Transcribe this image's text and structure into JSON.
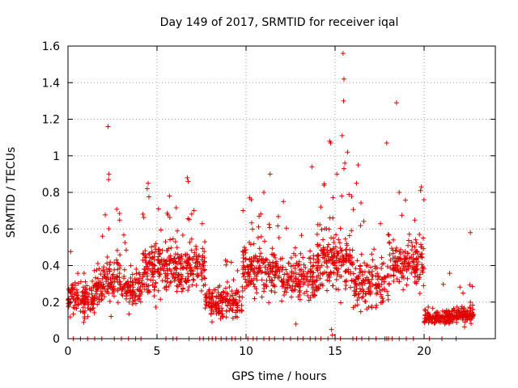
{
  "chart_data": {
    "type": "scatter",
    "title": "Day 149 of 2017, SRMTID for receiver iqal",
    "xlabel": "GPS time / hours",
    "ylabel": "SRMTID / TECUs",
    "xlim": [
      0,
      24
    ],
    "ylim": [
      0,
      1.6
    ],
    "xticks": [
      0,
      5,
      10,
      15,
      20
    ],
    "yticks": [
      0,
      0.2,
      0.4,
      0.6,
      0.8,
      1,
      1.2,
      1.4,
      1.6
    ],
    "xtick_labels": [
      "0",
      "5",
      "10",
      "15",
      "20"
    ],
    "ytick_labels": [
      "0",
      "0.2",
      "0.4",
      "0.6",
      "0.8",
      "1",
      "1.2",
      "1.4",
      "1.6"
    ],
    "grid": true,
    "marker": "+",
    "color": "#e00000",
    "outliers": [
      {
        "x": 2.25,
        "y": 1.16
      },
      {
        "x": 2.3,
        "y": 0.9
      },
      {
        "x": 2.28,
        "y": 0.87
      },
      {
        "x": 4.5,
        "y": 0.85
      },
      {
        "x": 4.45,
        "y": 0.82
      },
      {
        "x": 6.7,
        "y": 0.88
      },
      {
        "x": 6.75,
        "y": 0.86
      },
      {
        "x": 11.35,
        "y": 0.9
      },
      {
        "x": 13.7,
        "y": 0.94
      },
      {
        "x": 14.7,
        "y": 1.08
      },
      {
        "x": 14.75,
        "y": 1.07
      },
      {
        "x": 15.45,
        "y": 1.56
      },
      {
        "x": 15.5,
        "y": 1.42
      },
      {
        "x": 15.48,
        "y": 1.3
      },
      {
        "x": 15.4,
        "y": 1.11
      },
      {
        "x": 15.7,
        "y": 1.02
      },
      {
        "x": 15.55,
        "y": 0.96
      },
      {
        "x": 15.5,
        "y": 0.93
      },
      {
        "x": 16.3,
        "y": 0.95
      },
      {
        "x": 17.9,
        "y": 1.07
      },
      {
        "x": 18.45,
        "y": 1.29
      },
      {
        "x": 19.85,
        "y": 0.83
      },
      {
        "x": 19.8,
        "y": 0.81
      },
      {
        "x": 22.6,
        "y": 0.58
      },
      {
        "x": 14.8,
        "y": 0.05
      },
      {
        "x": 14.85,
        "y": 0.02
      },
      {
        "x": 12.8,
        "y": 0.08
      },
      {
        "x": 10.2,
        "y": 0.77
      },
      {
        "x": 10.3,
        "y": 0.76
      },
      {
        "x": 11.0,
        "y": 0.8
      },
      {
        "x": 12.1,
        "y": 0.75
      },
      {
        "x": 16.2,
        "y": 0.85
      },
      {
        "x": 18.6,
        "y": 0.8
      },
      {
        "x": 15.1,
        "y": 0.9
      },
      {
        "x": 14.2,
        "y": 0.72
      },
      {
        "x": 5.7,
        "y": 0.78
      }
    ],
    "segments": [
      {
        "x_start": 0.0,
        "x_end": 1.5,
        "y_mean": 0.22,
        "y_spread": 0.1,
        "y_max": 0.55,
        "count": 130
      },
      {
        "x_start": 1.5,
        "x_end": 3.0,
        "y_mean": 0.32,
        "y_spread": 0.13,
        "y_max": 0.72,
        "count": 130
      },
      {
        "x_start": 3.0,
        "x_end": 4.2,
        "y_mean": 0.28,
        "y_spread": 0.1,
        "y_max": 0.58,
        "count": 100
      },
      {
        "x_start": 4.2,
        "x_end": 6.0,
        "y_mean": 0.38,
        "y_spread": 0.13,
        "y_max": 0.78,
        "count": 170
      },
      {
        "x_start": 6.0,
        "x_end": 7.7,
        "y_mean": 0.38,
        "y_spread": 0.13,
        "y_max": 0.75,
        "count": 150
      },
      {
        "x_start": 7.7,
        "x_end": 9.8,
        "y_mean": 0.2,
        "y_spread": 0.08,
        "y_max": 0.45,
        "count": 170
      },
      {
        "x_start": 9.8,
        "x_end": 12.0,
        "y_mean": 0.38,
        "y_spread": 0.13,
        "y_max": 0.72,
        "count": 190
      },
      {
        "x_start": 12.0,
        "x_end": 14.0,
        "y_mean": 0.33,
        "y_spread": 0.12,
        "y_max": 0.7,
        "count": 160
      },
      {
        "x_start": 14.0,
        "x_end": 16.0,
        "y_mean": 0.42,
        "y_spread": 0.16,
        "y_max": 0.85,
        "count": 190
      },
      {
        "x_start": 16.0,
        "x_end": 18.0,
        "y_mean": 0.3,
        "y_spread": 0.12,
        "y_max": 0.75,
        "count": 150
      },
      {
        "x_start": 18.0,
        "x_end": 20.0,
        "y_mean": 0.42,
        "y_spread": 0.14,
        "y_max": 0.8,
        "count": 160
      },
      {
        "x_start": 20.0,
        "x_end": 21.5,
        "y_mean": 0.12,
        "y_spread": 0.04,
        "y_max": 0.4,
        "count": 120
      },
      {
        "x_start": 21.5,
        "x_end": 22.8,
        "y_mean": 0.13,
        "y_spread": 0.05,
        "y_max": 0.3,
        "count": 110
      }
    ],
    "zero_points_x": [
      0.3,
      0.7,
      1.1,
      1.5,
      1.9,
      2.6,
      3.0,
      3.4,
      3.8,
      4.1,
      5.5,
      5.9,
      6.1,
      6.8,
      7.4,
      7.6,
      7.9,
      8.1,
      8.3,
      8.6,
      8.9,
      9.2,
      9.4,
      9.7,
      10.1,
      10.4,
      10.6,
      11.0,
      11.3,
      11.6,
      12.1,
      12.5,
      12.9,
      13.2,
      13.6,
      13.9,
      14.2,
      14.6,
      15.0,
      15.3,
      16.0,
      16.2,
      16.5,
      16.9,
      17.3,
      17.8,
      17.9,
      18.0,
      18.2,
      18.6,
      19.0,
      19.4,
      20.3,
      21.0,
      21.8
    ]
  }
}
